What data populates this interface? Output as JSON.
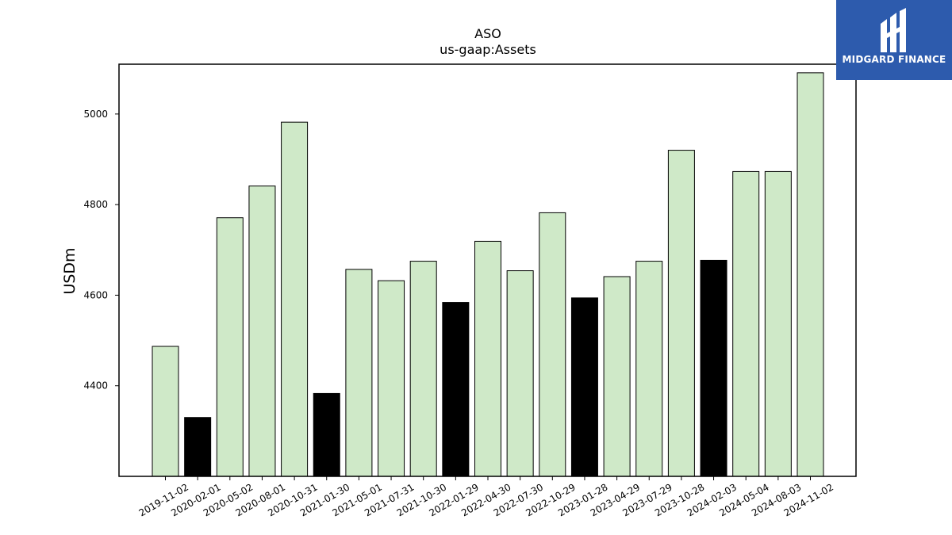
{
  "chart_data": {
    "type": "bar",
    "title": "ASO",
    "subtitle": "us-gaap:Assets",
    "xlabel": "",
    "ylabel": "USDm",
    "ylim": [
      4200,
      5110
    ],
    "yticks": [
      4400,
      4600,
      4800,
      5000
    ],
    "grid": false,
    "categories": [
      "2019-11-02",
      "2020-02-01",
      "2020-05-02",
      "2020-08-01",
      "2020-10-31",
      "2021-01-30",
      "2021-05-01",
      "2021-07-31",
      "2021-10-30",
      "2022-01-29",
      "2022-04-30",
      "2022-07-30",
      "2022-10-29",
      "2023-01-28",
      "2023-04-29",
      "2023-07-29",
      "2023-10-28",
      "2024-02-03",
      "2024-05-04",
      "2024-08-03",
      "2024-11-02"
    ],
    "values": [
      4487,
      4330,
      4771,
      4841,
      4982,
      4383,
      4657,
      4632,
      4675,
      4584,
      4719,
      4654,
      4782,
      4594,
      4641,
      4675,
      4920,
      4677,
      4873,
      4873,
      5091
    ],
    "bar_colors": [
      "#cfe9c8",
      "#000000",
      "#cfe9c8",
      "#cfe9c8",
      "#cfe9c8",
      "#000000",
      "#cfe9c8",
      "#cfe9c8",
      "#cfe9c8",
      "#000000",
      "#cfe9c8",
      "#cfe9c8",
      "#cfe9c8",
      "#000000",
      "#cfe9c8",
      "#cfe9c8",
      "#cfe9c8",
      "#000000",
      "#cfe9c8",
      "#cfe9c8",
      "#cfe9c8"
    ]
  },
  "logo": {
    "text": "MIDGARD FINANCE",
    "color": "#2d5bad"
  }
}
